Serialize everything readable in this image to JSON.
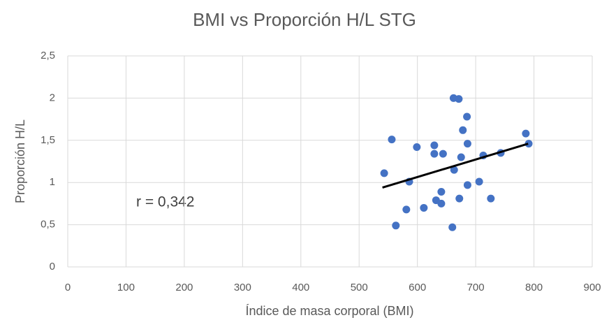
{
  "chart_data": {
    "type": "scatter",
    "title": "BMI vs Proporción H/L STG",
    "x_label": "Índice de masa corporal (BMI)",
    "y_label": "Proporción H/L",
    "annotation": "r = 0,342",
    "x": [
      543,
      556,
      563,
      586,
      581,
      599,
      611,
      629,
      629,
      644,
      632,
      641,
      641,
      662,
      671,
      660,
      663,
      675,
      672,
      678,
      685,
      686,
      686,
      706,
      713,
      726,
      743,
      786,
      791
    ],
    "values": [
      1.11,
      1.51,
      0.49,
      1.01,
      0.68,
      1.42,
      0.7,
      1.44,
      1.34,
      1.34,
      0.79,
      0.89,
      0.75,
      2.0,
      1.99,
      0.47,
      1.15,
      1.3,
      0.81,
      1.62,
      1.78,
      1.46,
      0.97,
      1.01,
      1.32,
      0.81,
      1.35,
      1.58,
      1.46
    ],
    "color": "#4472c4",
    "trendline": {
      "x": [
        540,
        790
      ],
      "values": [
        0.94,
        1.46
      ],
      "color": "#000000"
    },
    "xlim": [
      0,
      900
    ],
    "xticks": [
      0,
      100,
      200,
      300,
      400,
      500,
      600,
      700,
      800,
      900
    ],
    "ylim": [
      0,
      2.5
    ],
    "yticks": [
      0,
      {
        "value": 0.5,
        "label": "0,5"
      },
      1,
      {
        "value": 1.5,
        "label": "1,5"
      },
      2,
      {
        "value": 2.5,
        "label": "2,5"
      }
    ],
    "grid": true
  }
}
